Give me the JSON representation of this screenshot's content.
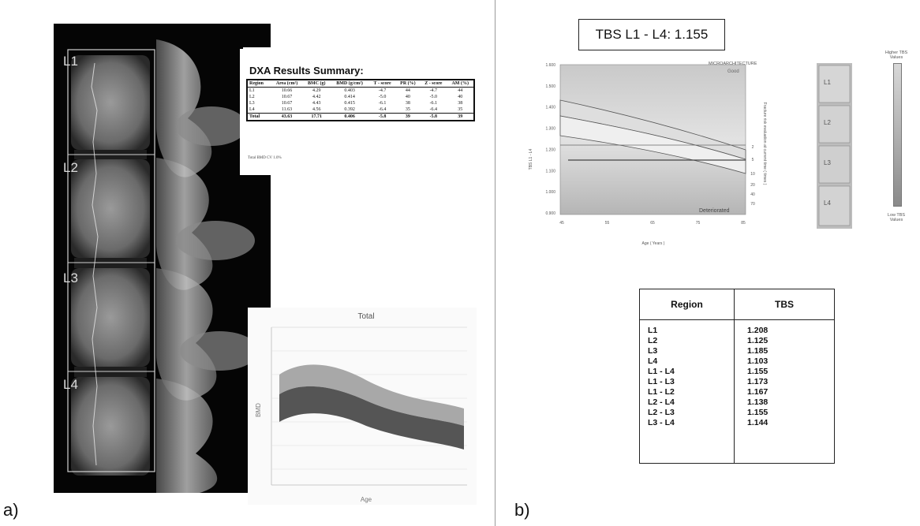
{
  "panel_a": {
    "label": "a)",
    "vertebra_labels": [
      "L1",
      "L2",
      "L3",
      "L4"
    ],
    "dxa": {
      "title": "DXA Results Summary:",
      "headers": [
        "Region",
        "Area (cm²)",
        "BMC (g)",
        "BMD (g/cm²)",
        "T - score",
        "PR (%)",
        "Z - score",
        "AM (%)"
      ],
      "rows": [
        [
          "L1",
          "10.66",
          "4.29",
          "0.403",
          "-4.7",
          "44",
          "-4.7",
          "44"
        ],
        [
          "L2",
          "10.67",
          "4.42",
          "0.414",
          "-5.0",
          "40",
          "-5.0",
          "40"
        ],
        [
          "L3",
          "10.67",
          "4.43",
          "0.415",
          "-6.1",
          "38",
          "-6.1",
          "38"
        ],
        [
          "L4",
          "11.63",
          "4.56",
          "0.392",
          "-6.4",
          "35",
          "-6.4",
          "35"
        ],
        [
          "Total",
          "43.63",
          "17.71",
          "0.406",
          "-5.8",
          "39",
          "-5.8",
          "39"
        ]
      ],
      "footnote": "Total BMD CV 1.0%"
    },
    "total_chart": {
      "title": "Total",
      "ylabel": "BMD",
      "xlabel": "Age"
    }
  },
  "panel_b": {
    "label": "b)",
    "headline": "TBS L1 - L4: 1.155",
    "tbs_chart": {
      "y_ticks": [
        "1.600",
        "1.500",
        "1.400",
        "1.300",
        "1.200",
        "1.100",
        "1.000",
        "0.900"
      ],
      "x_ticks": [
        "45",
        "55",
        "65",
        "75",
        "85"
      ],
      "ylabel": "TBS L1 - L4",
      "xlabel": "Age ( Years )",
      "top_label": "MICROARCHITECTURE",
      "good": "Good",
      "deteriorated": "Deteriorated",
      "right_ticks": [
        "2",
        "5",
        "10",
        "20",
        "40",
        "70"
      ],
      "right_label": "Fracture risk evaluation at current time ( times )"
    },
    "thumb_labels": [
      "L1",
      "L2",
      "L3",
      "L4"
    ],
    "scale_high": "Higher TBS Values",
    "scale_low": "Low TBS Values",
    "tbs_table": {
      "headers": [
        "Region",
        "TBS"
      ],
      "rows": [
        [
          "L1",
          "1.208"
        ],
        [
          "L2",
          "1.125"
        ],
        [
          "L3",
          "1.185"
        ],
        [
          "L4",
          "1.103"
        ],
        [
          "L1 - L4",
          "1.155"
        ],
        [
          "L1 - L3",
          "1.173"
        ],
        [
          "L1 - L2",
          "1.167"
        ],
        [
          "L2 - L4",
          "1.138"
        ],
        [
          "L2 - L3",
          "1.155"
        ],
        [
          "L3 - L4",
          "1.144"
        ]
      ]
    }
  }
}
